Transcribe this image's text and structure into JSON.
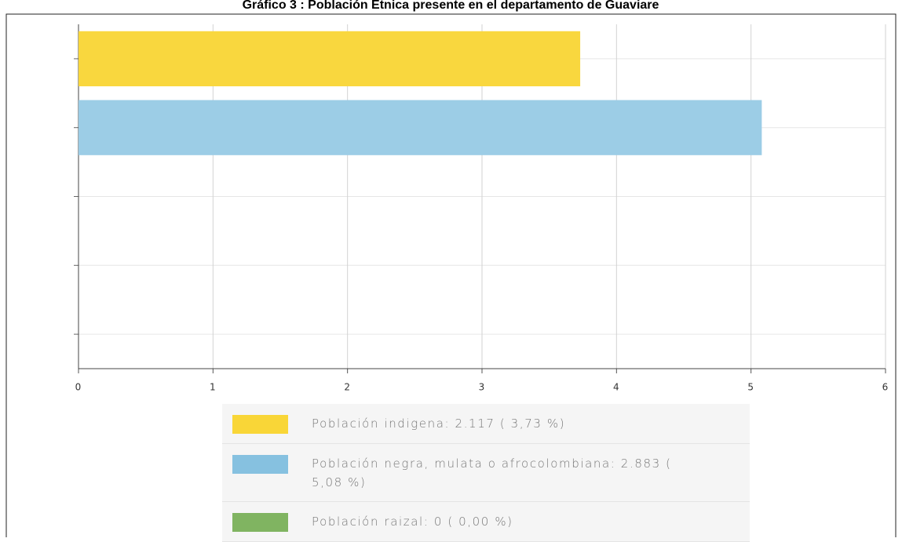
{
  "chart_data": {
    "type": "bar",
    "horizontal": true,
    "title": "Gráfico 3 : Población Étnica presente en el departamento de Guaviare",
    "categories": [
      null,
      null,
      null,
      null,
      null
    ],
    "values": [
      3.73,
      5.08,
      0,
      null,
      null
    ],
    "colors": [
      "#f9d73e",
      "#9ccde6",
      "#80b461",
      null,
      null
    ],
    "xlim": [
      0,
      6
    ],
    "xticks": [
      0,
      1,
      2,
      3,
      4,
      5,
      6
    ],
    "grid": true,
    "legend": [
      {
        "label": "Población indigena:  2.117 ( 3,73 %)",
        "color": "#f9d637"
      },
      {
        "label": "Población negra, mulata o afrocolombiana:  2.883 ( 5,08 %)",
        "color": "#86c1e0"
      },
      {
        "label": "Población raizal:  0 ( 0,00 %)",
        "color": "#80b461"
      }
    ]
  }
}
